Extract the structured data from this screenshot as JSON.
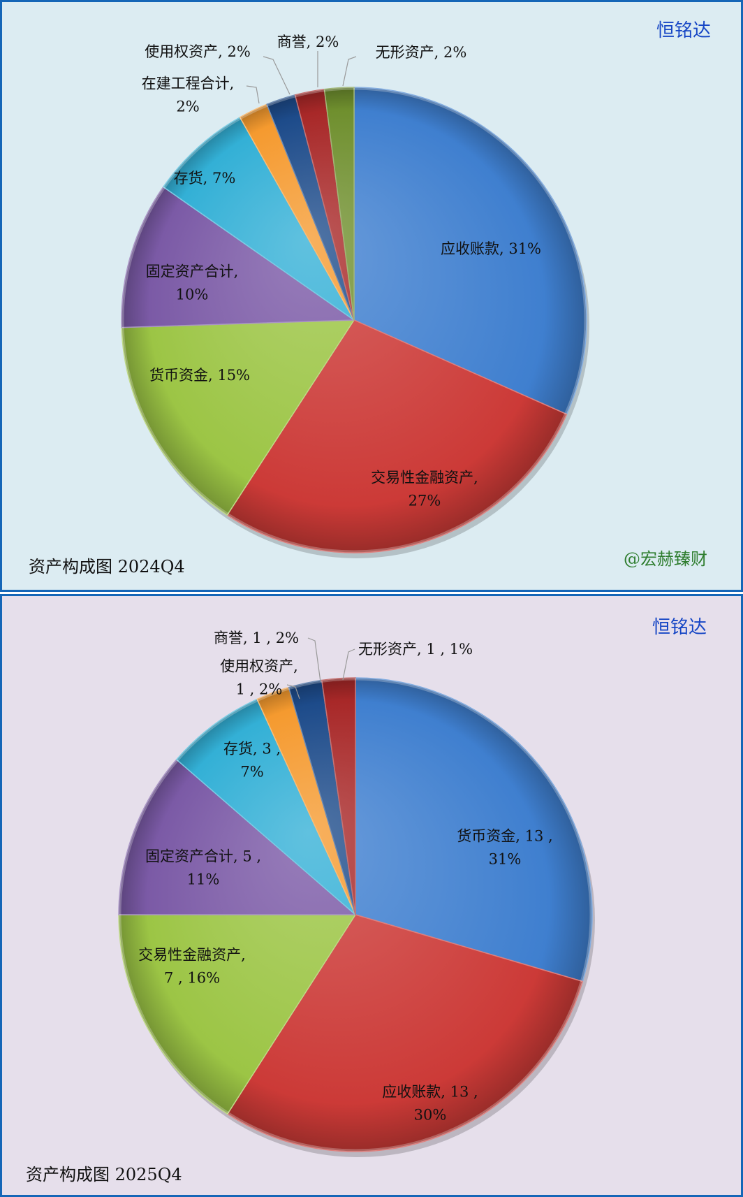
{
  "panels": [
    {
      "brand": "恒铭达",
      "caption": "资产构成图 2024Q4",
      "watermark": "@宏赫臻财"
    },
    {
      "brand": "恒铭达",
      "caption": "资产构成图 2025Q4"
    }
  ],
  "chart_data": [
    {
      "type": "pie",
      "title": "资产构成图 2024Q4",
      "slices": [
        {
          "name": "应收账款",
          "value": 31,
          "color": "#3f7fcf",
          "label": [
            "应收账款, 31%"
          ]
        },
        {
          "name": "交易性金融资产",
          "value": 27,
          "color": "#cc3a37",
          "label": [
            "交易性金融资产,",
            "27%"
          ]
        },
        {
          "name": "货币资金",
          "value": 15,
          "color": "#9cc545",
          "label": [
            "货币资金, 15%"
          ]
        },
        {
          "name": "固定资产合计",
          "value": 10,
          "color": "#7b5aa6",
          "label": [
            "固定资产合计,",
            "10%"
          ]
        },
        {
          "name": "存货",
          "value": 7,
          "color": "#33b0d6",
          "label": [
            "存货, 7%"
          ]
        },
        {
          "name": "在建工程合计",
          "value": 2,
          "color": "#f59a2f",
          "label": [
            "在建工程合计,",
            "2%"
          ]
        },
        {
          "name": "使用权资产",
          "value": 2,
          "color": "#1d4b8a",
          "label": [
            "使用权资产, 2%"
          ]
        },
        {
          "name": "商誉",
          "value": 2,
          "color": "#a82828",
          "label": [
            "商誉, 2%"
          ]
        },
        {
          "name": "无形资产",
          "value": 2,
          "color": "#6f8f2e",
          "label": [
            "无形资产, 2%"
          ]
        }
      ]
    },
    {
      "type": "pie",
      "title": "资产构成图 2025Q4",
      "slices": [
        {
          "name": "货币资金",
          "value": 13,
          "percent": 31,
          "color": "#3f7fcf",
          "label": [
            "货币资金, 13 ,",
            "31%"
          ]
        },
        {
          "name": "应收账款",
          "value": 13,
          "percent": 30,
          "color": "#cc3a37",
          "label": [
            "应收账款, 13 ,",
            "30%"
          ]
        },
        {
          "name": "交易性金融资产",
          "value": 7,
          "percent": 16,
          "color": "#9cc545",
          "label": [
            "交易性金融资产,",
            "7 , 16%"
          ]
        },
        {
          "name": "固定资产合计",
          "value": 5,
          "percent": 11,
          "color": "#7b5aa6",
          "label": [
            "固定资产合计, 5 ,",
            "11%"
          ]
        },
        {
          "name": "存货",
          "value": 3,
          "percent": 7,
          "color": "#33b0d6",
          "label": [
            "存货, 3 ,",
            "7%"
          ]
        },
        {
          "name": "使用权资产",
          "value": 1,
          "percent": 2,
          "color": "#f59a2f",
          "label": [
            "使用权资产,",
            "1 , 2%"
          ]
        },
        {
          "name": "商誉",
          "value": 1,
          "percent": 2,
          "color": "#1d4b8a",
          "label": [
            "商誉, 1 , 2%"
          ]
        },
        {
          "name": "无形资产",
          "value": 1,
          "percent": 1,
          "color": "#a82828",
          "label": [
            "无形资产, 1 , 1%"
          ]
        }
      ]
    }
  ]
}
